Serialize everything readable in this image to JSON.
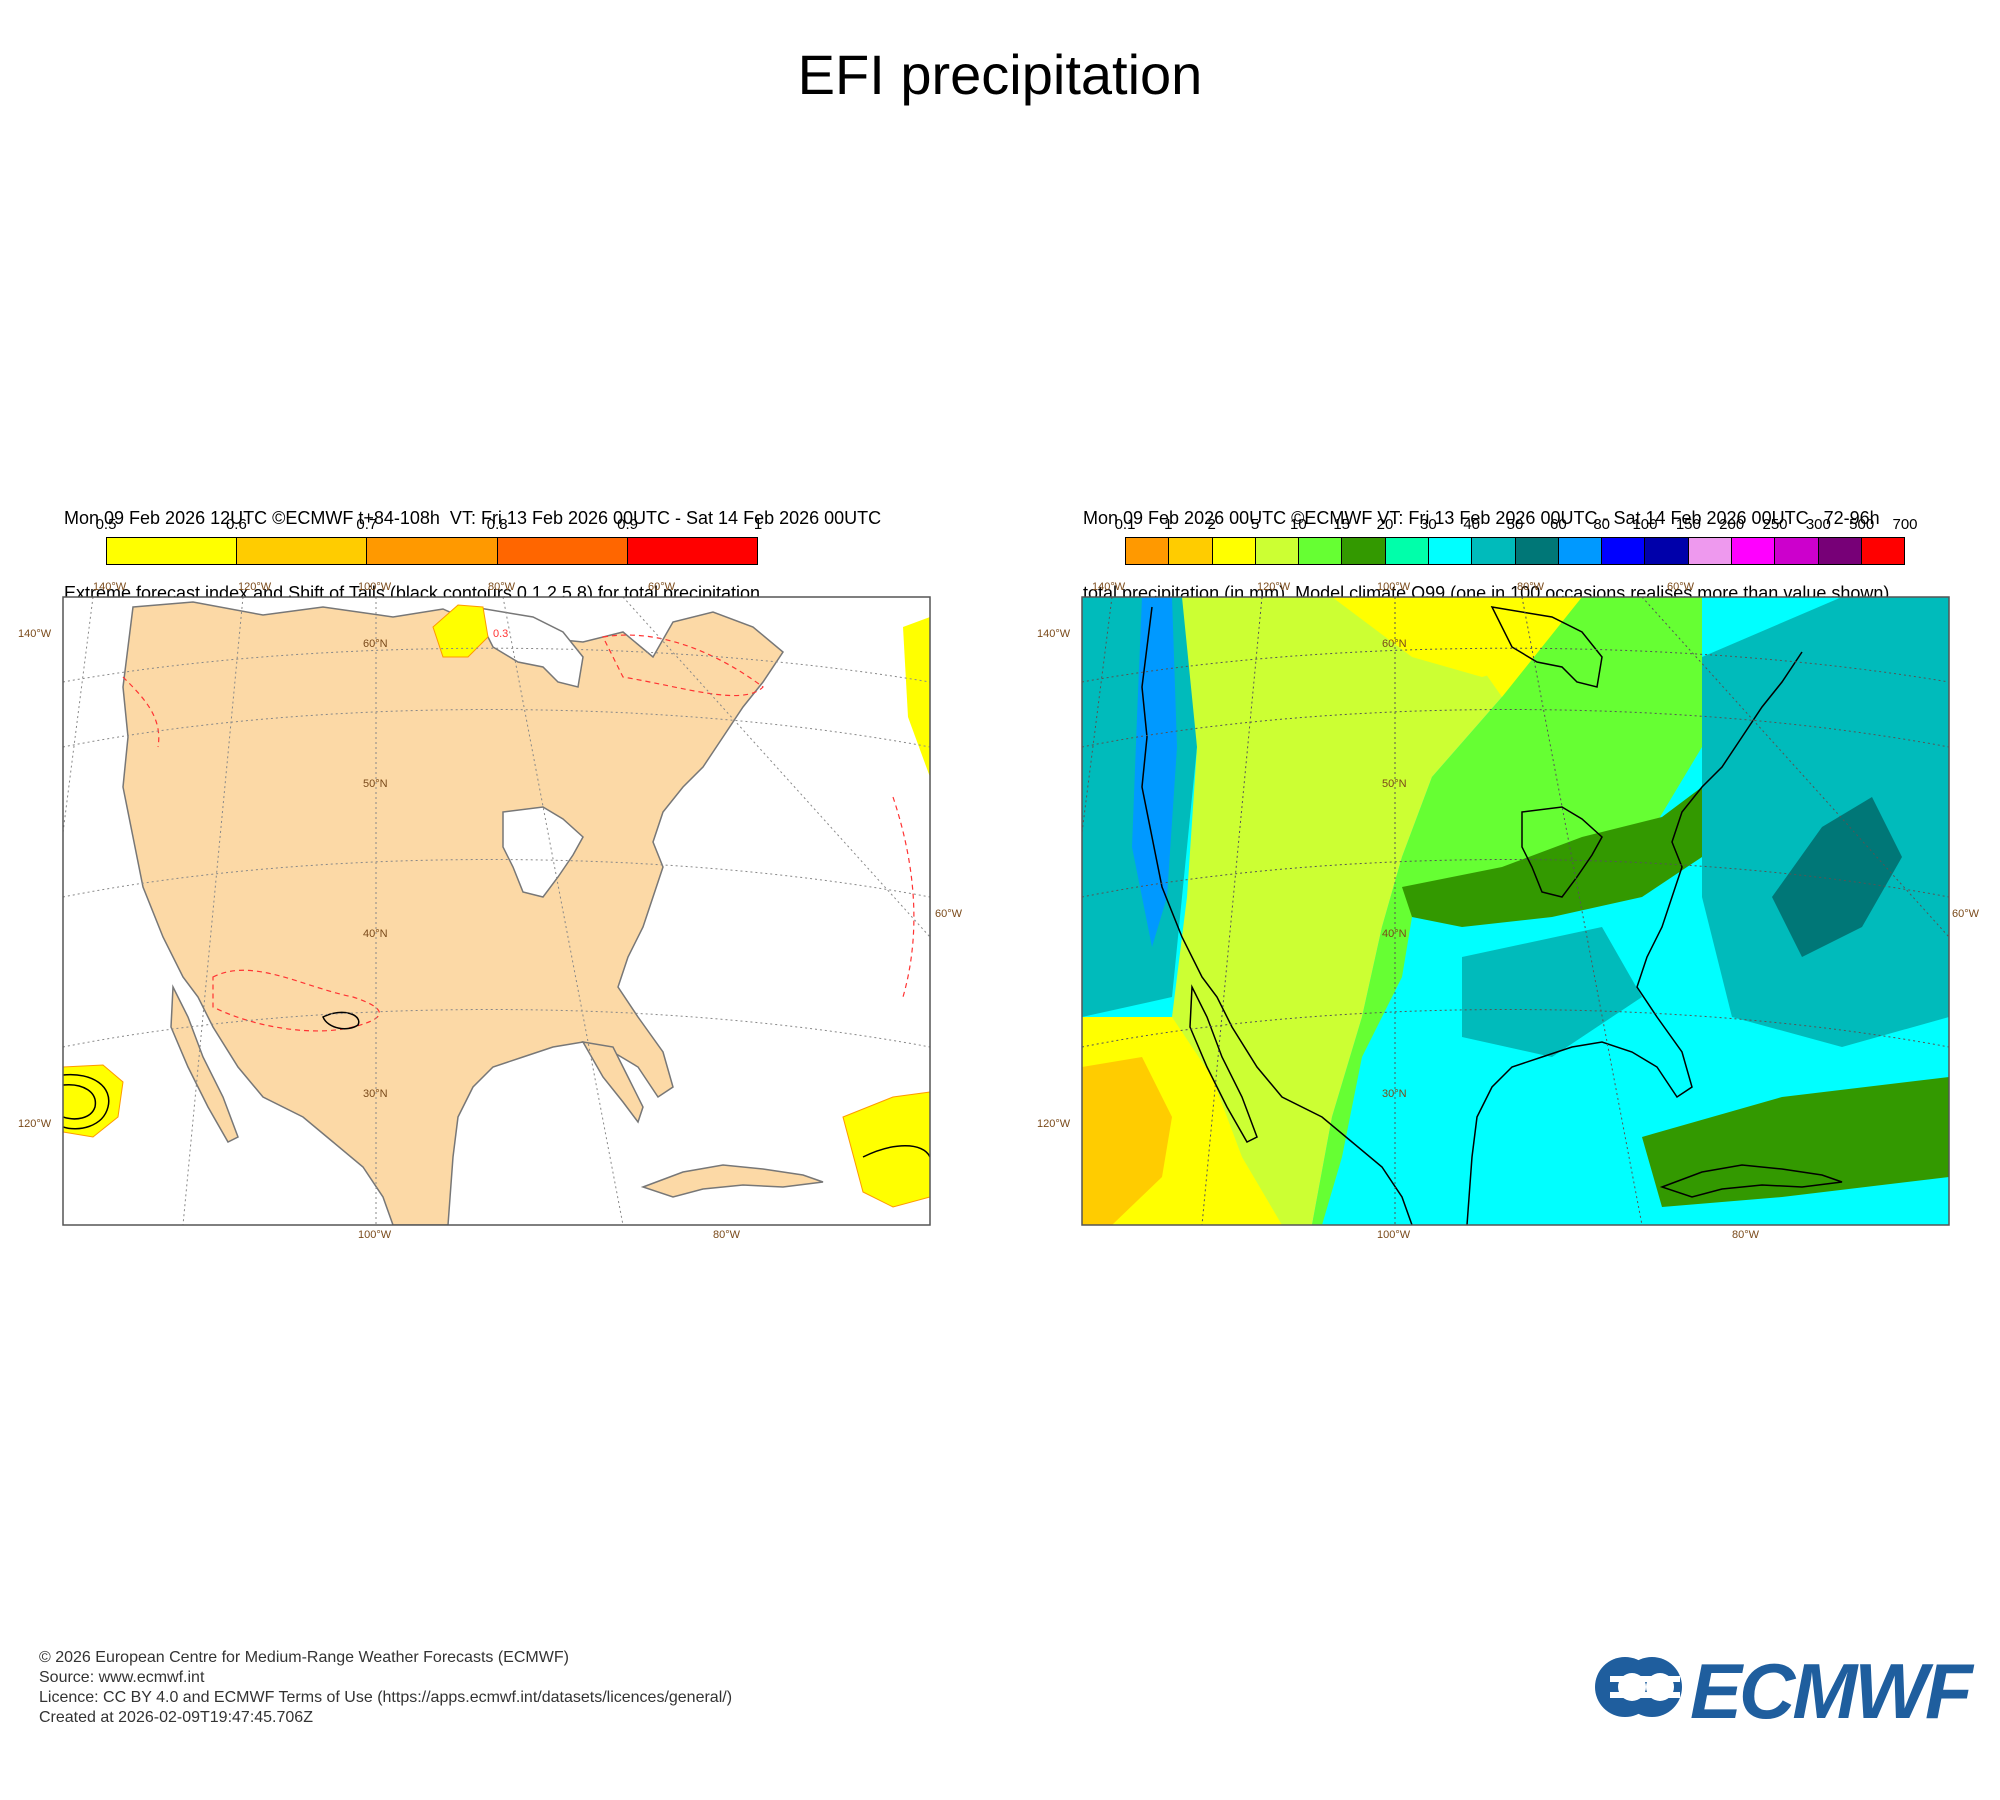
{
  "title": "EFI precipitation",
  "left_panel": {
    "header_line1": "Mon 09 Feb 2026 12UTC ©ECMWF t+84-108h  VT: Fri 13 Feb 2026 00UTC - Sat 14 Feb 2026 00UTC",
    "header_line2": "Extreme forecast index and Shift of Tails (black contours 0,1,2,5,8) for total precipitation",
    "legend_labels": [
      "0.5",
      "0.6",
      "0.7",
      "0.8",
      "0.9",
      "1"
    ],
    "legend_colors": [
      "#ffff00",
      "#ffcc00",
      "#ff9900",
      "#ff6600",
      "#ff0000"
    ],
    "contour_label": "0.3",
    "land_color": "#fcd9a6"
  },
  "right_panel": {
    "header_line1": "Mon 09 Feb 2026 00UTC ©ECMWF VT: Fri 13 Feb 2026 00UTC - Sat 14 Feb 2026 00UTC   72-96h",
    "header_line2": "total precipitation (in mm)  Model climate Q99 (one in 100 occasions realises more than value shown)",
    "legend_labels": [
      "0.1",
      "1",
      "2",
      "5",
      "10",
      "15",
      "20",
      "30",
      "40",
      "50",
      "60",
      "80",
      "100",
      "150",
      "200",
      "250",
      "300",
      "500",
      "700"
    ],
    "legend_colors": [
      "#ff9900",
      "#ffcc00",
      "#ffff00",
      "#ccff33",
      "#66ff33",
      "#339900",
      "#00ffaa",
      "#00ffff",
      "#00bbbb",
      "#007777",
      "#0099ff",
      "#0000ff",
      "#0000aa",
      "#ee99ee",
      "#ff00ff",
      "#cc00cc",
      "#770077",
      "#ff0000"
    ]
  },
  "map_labels": {
    "top": [
      "140°W",
      "120°W",
      "100°W",
      "80°W",
      "60°W"
    ],
    "left": [
      "140°W",
      "120°W"
    ],
    "right": [
      "60°W"
    ],
    "bottom": [
      "100°W",
      "80°W"
    ],
    "lat": [
      "60°N",
      "50°N",
      "40°N",
      "30°N"
    ]
  },
  "footer": {
    "line1": "© 2026 European Centre for Medium-Range Weather Forecasts (ECMWF)",
    "line2": "Source: www.ecmwf.int",
    "line3": "Licence: CC BY 4.0 and ECMWF Terms of Use (https://apps.ecmwf.int/datasets/licences/general/)",
    "line4": "Created at 2026-02-09T19:47:45.706Z"
  },
  "logo_text": "ECMWF",
  "logo_color": "#1f5e9e"
}
